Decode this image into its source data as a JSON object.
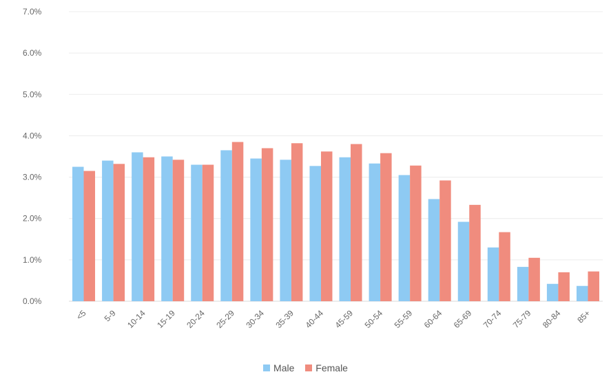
{
  "chart_data": {
    "type": "bar",
    "categories": [
      "<5",
      "5-9",
      "10-14",
      "15-19",
      "20-24",
      "25-29",
      "30-34",
      "35-39",
      "40-44",
      "45-59",
      "50-54",
      "55-59",
      "60-64",
      "65-69",
      "70-74",
      "75-79",
      "80-84",
      "85+"
    ],
    "series": [
      {
        "name": "Male",
        "color": "#8ecaf3",
        "values": [
          3.25,
          3.4,
          3.6,
          3.5,
          3.3,
          3.65,
          3.45,
          3.42,
          3.27,
          3.48,
          3.33,
          3.05,
          2.47,
          1.92,
          1.3,
          0.83,
          0.42,
          0.37
        ]
      },
      {
        "name": "Female",
        "color": "#f08c7e",
        "values": [
          3.15,
          3.32,
          3.48,
          3.42,
          3.3,
          3.85,
          3.7,
          3.82,
          3.62,
          3.8,
          3.58,
          3.28,
          2.92,
          2.33,
          1.67,
          1.05,
          0.7,
          0.72
        ]
      }
    ],
    "y_ticks": [
      "0.0%",
      "1.0%",
      "2.0%",
      "3.0%",
      "4.0%",
      "5.0%",
      "6.0%",
      "7.0%"
    ],
    "ylim": [
      0,
      7
    ],
    "grid": true,
    "legend_position": "bottom"
  },
  "legend": {
    "male_label": "Male",
    "female_label": "Female"
  }
}
